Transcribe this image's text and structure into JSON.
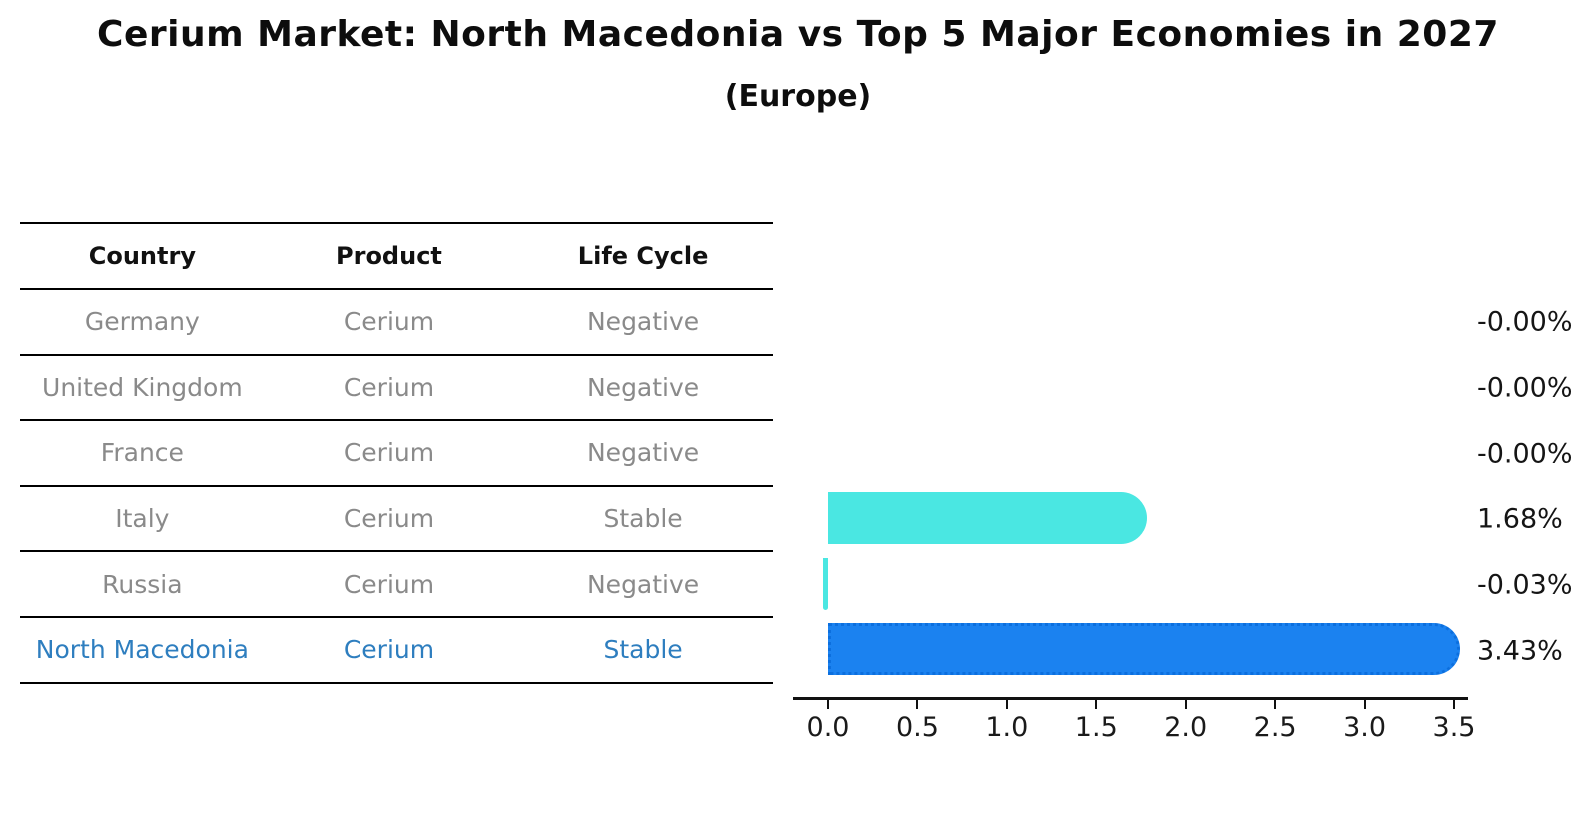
{
  "title": "Cerium Market: North Macedonia vs Top 5 Major Economies in 2027",
  "subtitle": "(Europe)",
  "table": {
    "headers": [
      "Country",
      "Product",
      "Life Cycle"
    ],
    "rows": [
      {
        "country": "Germany",
        "product": "Cerium",
        "life_cycle": "Negative"
      },
      {
        "country": "United Kingdom",
        "product": "Cerium",
        "life_cycle": "Negative"
      },
      {
        "country": "France",
        "product": "Cerium",
        "life_cycle": "Negative"
      },
      {
        "country": "Italy",
        "product": "Cerium",
        "life_cycle": "Stable"
      },
      {
        "country": "Russia",
        "product": "Cerium",
        "life_cycle": "Negative"
      },
      {
        "country": "North Macedonia",
        "product": "Cerium",
        "life_cycle": "Stable"
      }
    ],
    "highlighted_row": "North Macedonia"
  },
  "chart_data": {
    "type": "bar",
    "orientation": "horizontal",
    "title": "Cerium Market: North Macedonia vs Top 5 Major Economies in 2027",
    "subtitle": "(Europe)",
    "categories": [
      "Germany",
      "United Kingdom",
      "France",
      "Italy",
      "Russia",
      "North Macedonia"
    ],
    "values": [
      0.0,
      0.0,
      0.0,
      1.68,
      -0.03,
      3.43
    ],
    "value_labels": [
      "-0.00%",
      "-0.00%",
      "-0.00%",
      "1.68%",
      "-0.03%",
      "3.43%"
    ],
    "xticks": [
      "0.0",
      "0.5",
      "1.0",
      "1.5",
      "2.0",
      "2.5",
      "3.0",
      "3.5"
    ],
    "xlim": [
      0,
      3.5
    ],
    "grid": false,
    "legend": "none",
    "bar_colors": [
      "#4ae7e2",
      "#4ae7e2",
      "#4ae7e2",
      "#4ae7e2",
      "#4ae7e2",
      "#1b82f0"
    ],
    "highlight_index": 5,
    "highlight_color": "#1b82f0",
    "default_color": "#4ae7e2"
  },
  "colors": {
    "cyan_bar": "#4ae7e2",
    "blue_bar": "#1b82f0",
    "highlight_text": "#2e7ebf",
    "muted_text": "#8a8a8a",
    "axis": "#111111"
  }
}
